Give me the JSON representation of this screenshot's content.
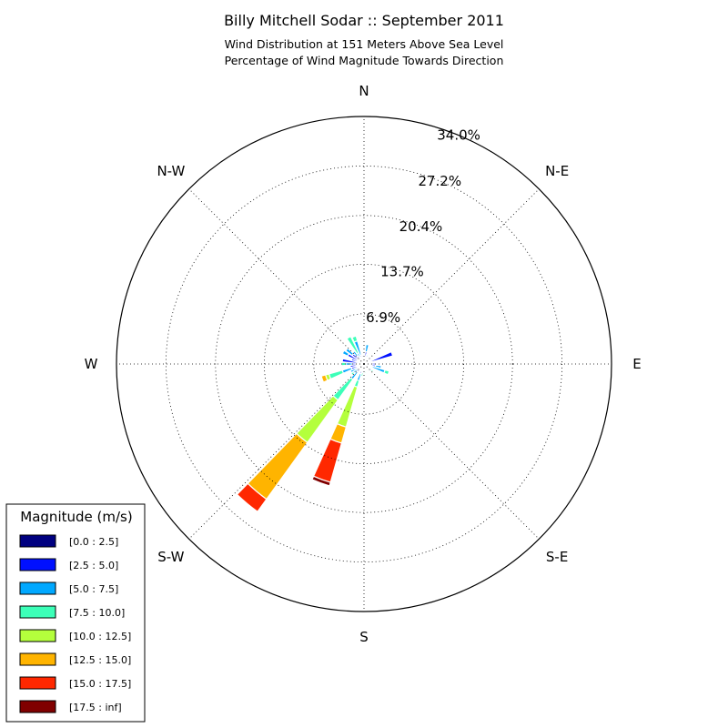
{
  "chart_data": {
    "type": "windrose",
    "title": "Billy Mitchell Sodar :: September 2011",
    "subtitle_lines": [
      "Wind Distribution at 151 Meters Above Sea Level",
      "Percentage of Wind Magnitude Towards Direction"
    ],
    "directions": [
      "N",
      "N-E",
      "E",
      "S-E",
      "S",
      "S-W",
      "W",
      "N-W"
    ],
    "radial_ticks": [
      "6.9%",
      "13.7%",
      "20.4%",
      "27.2%",
      "34.0%"
    ],
    "radial_tick_values": [
      6.9,
      13.7,
      20.4,
      27.2,
      34.0
    ],
    "r_max": 34.0,
    "legend": {
      "title": "Magnitude (m/s)",
      "bins": [
        "[0.0 : 2.5]",
        "[2.5 : 5.0]",
        "[5.0 : 7.5]",
        "[7.5 : 10.0]",
        "[10.0 : 12.5]",
        "[12.5 : 15.0]",
        "[15.0 : 17.5]",
        "[17.5 : inf]"
      ],
      "colors": [
        "#000080",
        "#0010ff",
        "#00a8ff",
        "#3cffb8",
        "#b4ff3c",
        "#ffb400",
        "#ff2800",
        "#800000"
      ]
    },
    "sectors": [
      {
        "angle": 0,
        "values": [
          0.2,
          0.6,
          0.4,
          0.0,
          0.0,
          0.0,
          0.0,
          0.0
        ]
      },
      {
        "angle": 10,
        "values": [
          0.2,
          1.5,
          1.0,
          0.0,
          0.0,
          0.0,
          0.0,
          0.0
        ]
      },
      {
        "angle": 20,
        "values": [
          0.2,
          0.8,
          0.3,
          0.0,
          0.0,
          0.0,
          0.0,
          0.0
        ]
      },
      {
        "angle": 30,
        "values": [
          0.2,
          0.3,
          0.0,
          0.0,
          0.0,
          0.0,
          0.0,
          0.0
        ]
      },
      {
        "angle": 50,
        "values": [
          0.2,
          0.3,
          0.0,
          0.0,
          0.0,
          0.0,
          0.0,
          0.0
        ]
      },
      {
        "angle": 70,
        "values": [
          0.3,
          3.8,
          0.0,
          0.0,
          0.0,
          0.0,
          0.0,
          0.0
        ]
      },
      {
        "angle": 90,
        "values": [
          0.3,
          1.3,
          0.0,
          0.0,
          0.0,
          0.0,
          0.0,
          0.0
        ]
      },
      {
        "angle": 100,
        "values": [
          0.3,
          1.3,
          0.8,
          0.0,
          0.0,
          0.0,
          0.0,
          0.0
        ]
      },
      {
        "angle": 110,
        "values": [
          0.2,
          1.0,
          1.8,
          0.6,
          0.0,
          0.0,
          0.0,
          0.0
        ]
      },
      {
        "angle": 130,
        "values": [
          0.2,
          0.5,
          0.6,
          0.3,
          0.0,
          0.0,
          0.0,
          0.0
        ]
      },
      {
        "angle": 150,
        "values": [
          0.2,
          0.4,
          0.4,
          0.2,
          0.0,
          0.0,
          0.0,
          0.0
        ]
      },
      {
        "angle": 170,
        "values": [
          0.2,
          0.3,
          0.4,
          0.4,
          0.0,
          0.0,
          0.0,
          0.0
        ]
      },
      {
        "angle": 180,
        "values": [
          0.2,
          0.3,
          0.3,
          0.2,
          0.0,
          0.0,
          0.0,
          0.0
        ]
      },
      {
        "angle": 190,
        "values": [
          0.2,
          0.3,
          0.7,
          0.5,
          0.0,
          0.0,
          0.0,
          0.0
        ]
      },
      {
        "angle": 200,
        "values": [
          0.4,
          1.0,
          1.0,
          0.9,
          5.7,
          2.3,
          5.6,
          0.5
        ]
      },
      {
        "angle": 220,
        "values": [
          0.4,
          1.0,
          1.2,
          3.5,
          7.2,
          9.6,
          2.1,
          0.0
        ]
      },
      {
        "angle": 230,
        "values": [
          0.3,
          0.7,
          0.8,
          0.4,
          0.0,
          0.0,
          0.0,
          0.0
        ]
      },
      {
        "angle": 240,
        "values": [
          0.3,
          1.0,
          0.8,
          0.0,
          0.0,
          0.0,
          0.0,
          0.0
        ]
      },
      {
        "angle": 250,
        "values": [
          0.4,
          1.4,
          1.3,
          1.9,
          0.5,
          0.6,
          0.0,
          0.0
        ]
      },
      {
        "angle": 260,
        "values": [
          0.3,
          1.6,
          0.0,
          0.0,
          0.0,
          0.0,
          0.0,
          0.0
        ]
      },
      {
        "angle": 270,
        "values": [
          0.4,
          1.2,
          0.9,
          0.6,
          0.0,
          0.0,
          0.0,
          0.0
        ]
      },
      {
        "angle": 280,
        "values": [
          0.4,
          2.6,
          0.0,
          0.0,
          0.0,
          0.0,
          0.0,
          0.0
        ]
      },
      {
        "angle": 290,
        "values": [
          0.4,
          1.4,
          0.0,
          0.0,
          0.0,
          0.0,
          0.0,
          0.0
        ]
      },
      {
        "angle": 300,
        "values": [
          0.4,
          2.1,
          0.8,
          0.0,
          0.0,
          0.0,
          0.0,
          0.0
        ]
      },
      {
        "angle": 310,
        "values": [
          0.4,
          1.6,
          1.1,
          0.0,
          0.0,
          0.0,
          0.0,
          0.0
        ]
      },
      {
        "angle": 320,
        "values": [
          0.4,
          1.0,
          0.8,
          0.0,
          0.0,
          0.0,
          0.0,
          0.0
        ]
      },
      {
        "angle": 330,
        "values": [
          0.5,
          0.6,
          0.6,
          2.5,
          0.0,
          0.0,
          0.0,
          0.0
        ]
      },
      {
        "angle": 340,
        "values": [
          0.4,
          0.9,
          2.0,
          0.7,
          0.0,
          0.0,
          0.0,
          0.0
        ]
      },
      {
        "angle": 350,
        "values": [
          0.4,
          0.8,
          0.0,
          0.0,
          0.0,
          0.0,
          0.0,
          0.0
        ]
      }
    ]
  }
}
